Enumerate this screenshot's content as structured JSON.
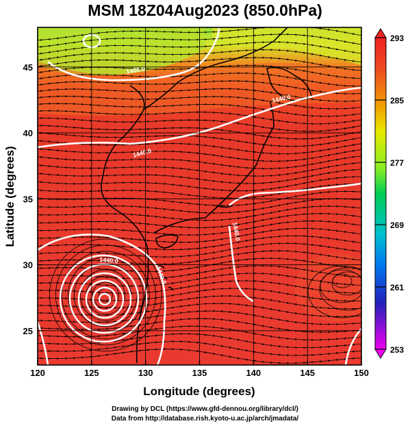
{
  "title": "MSM 18Z04Aug2023 (850.0hPa)",
  "map": {
    "xlabel": "Longitude (degrees)",
    "ylabel": "Latitude  (degrees)",
    "lon_range": [
      120,
      150
    ],
    "lat_range": [
      22.4,
      48
    ],
    "lon_ticks": [
      "120",
      "125",
      "130",
      "135",
      "140",
      "145",
      "150"
    ],
    "lat_ticks": [
      "25",
      "30",
      "35",
      "40",
      "45"
    ],
    "contour_labels": [
      "1400.0",
      "1440.0",
      "1440.0",
      "1440.0",
      "1440.0",
      "1440.0"
    ],
    "typhoon_center": [
      126.3,
      27.7
    ]
  },
  "colorbar": {
    "ticks": [
      "293",
      "285",
      "277",
      "269",
      "261",
      "253"
    ],
    "min": 253,
    "max": 293,
    "colors": [
      "#ee00ee",
      "#2222cc",
      "#00aaee",
      "#00cc66",
      "#88ee22",
      "#f0e000",
      "#f0a000",
      "#ee4020",
      "#ee2222"
    ]
  },
  "credits": {
    "line1": "Drawing by DCL (https://www.gfd-dennou.org/library/dcl/)",
    "line2": "Data from http://database.rish.kyoto-u.ac.jp/arch/jmadata/"
  }
}
